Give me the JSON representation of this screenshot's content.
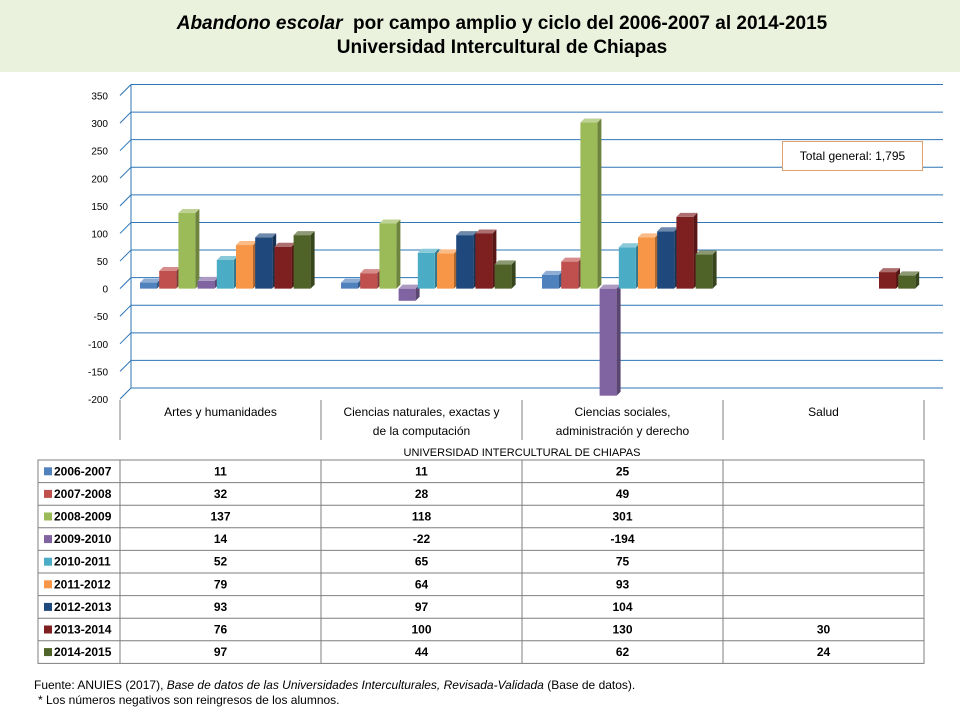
{
  "title": {
    "italic_part": "Abandono escolar",
    "rest": "por campo amplio y ciclo del 2006-2007 al 2014-2015",
    "line2": "Universidad Intercultural de Chiapas"
  },
  "total_label": "Total general: 1,795",
  "footer": {
    "source_prefix": "Fuente: ANUIES (2017),",
    "source_italic": "Base de datos de las Universidades Interculturales, Revisada-Validada",
    "source_suffix": "(Base de datos).",
    "note": "* Los números negativos son reingresos de los alumnos."
  },
  "chart_data": {
    "type": "bar",
    "title": "Abandono escolar por campo amplio y ciclo del 2006-2007 al 2014-2015 Universidad Intercultural de Chiapas",
    "xlabel": "UNIVERSIDAD INTERCULTURAL DE CHIAPAS",
    "ylabel": "",
    "ylim": [
      -200,
      350
    ],
    "yticks": [
      350,
      300,
      250,
      200,
      150,
      100,
      50,
      0,
      -50,
      -100,
      -150,
      -200
    ],
    "grid": true,
    "categories": [
      "Artes y humanidades",
      "Ciencias naturales, exactas y de la computación",
      "Ciencias sociales, administración y derecho",
      "Salud"
    ],
    "category_lines": [
      [
        "Artes y humanidades"
      ],
      [
        "Ciencias naturales, exactas y",
        "de la computación"
      ],
      [
        "Ciencias sociales,",
        "administración y derecho"
      ],
      [
        "Salud"
      ]
    ],
    "series": [
      {
        "name": "2006-2007",
        "color": "#4f81bd",
        "values": [
          11,
          11,
          25,
          null
        ]
      },
      {
        "name": "2007-2008",
        "color": "#c0504d",
        "values": [
          32,
          28,
          49,
          null
        ]
      },
      {
        "name": "2008-2009",
        "color": "#9bbb59",
        "values": [
          137,
          118,
          301,
          null
        ]
      },
      {
        "name": "2009-2010",
        "color": "#8064a2",
        "values": [
          14,
          -22,
          -194,
          null
        ]
      },
      {
        "name": "2010-2011",
        "color": "#4bacc6",
        "values": [
          52,
          65,
          75,
          null
        ]
      },
      {
        "name": "2011-2012",
        "color": "#f79646",
        "values": [
          79,
          64,
          93,
          null
        ]
      },
      {
        "name": "2012-2013",
        "color": "#1f497d",
        "values": [
          93,
          97,
          104,
          null
        ]
      },
      {
        "name": "2013-2014",
        "color": "#7f2020",
        "values": [
          76,
          100,
          130,
          30
        ]
      },
      {
        "name": "2014-2015",
        "color": "#4f6228",
        "values": [
          97,
          44,
          62,
          24
        ]
      }
    ]
  }
}
